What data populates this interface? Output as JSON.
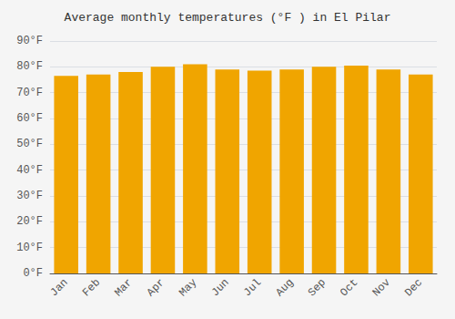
{
  "chart_data": {
    "type": "bar",
    "title": "Average monthly temperatures (°F ) in El Pilar",
    "categories": [
      "Jan",
      "Feb",
      "Mar",
      "Apr",
      "May",
      "Jun",
      "Jul",
      "Aug",
      "Sep",
      "Oct",
      "Nov",
      "Dec"
    ],
    "values": [
      76.5,
      77.0,
      78.0,
      80.0,
      81.0,
      79.0,
      78.5,
      79.0,
      80.0,
      80.5,
      79.0,
      77.0
    ],
    "color": "#F0A500",
    "ylim": [
      0,
      90
    ],
    "yticks": [
      {
        "value": 0,
        "label": "0°F"
      },
      {
        "value": 10,
        "label": "10°F"
      },
      {
        "value": 20,
        "label": "20°F"
      },
      {
        "value": 30,
        "label": "30°F"
      },
      {
        "value": 40,
        "label": "40°F"
      },
      {
        "value": 50,
        "label": "50°F"
      },
      {
        "value": 60,
        "label": "60°F"
      },
      {
        "value": 70,
        "label": "70°F"
      },
      {
        "value": 80,
        "label": "80°F"
      },
      {
        "value": 90,
        "label": "90°F"
      }
    ],
    "grid": true
  }
}
